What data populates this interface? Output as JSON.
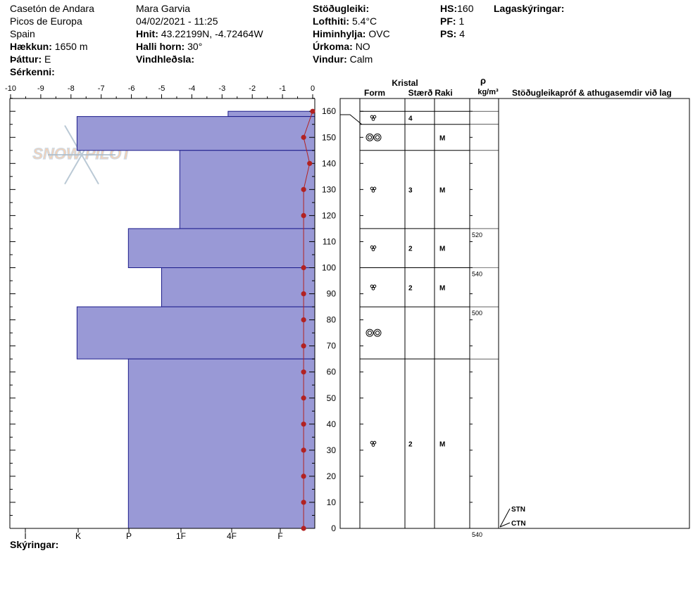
{
  "header": {
    "location": "Casetón de Andara",
    "region": "Picos de Europa",
    "country": "Spain",
    "elevation_label": "Hækkun:",
    "elevation": "1650 m",
    "aspect_label": "Þáttur:",
    "aspect": "E",
    "features_label": "Sérkenni:",
    "observer": "Mara Garvia",
    "datetime": "04/02/2021 - 11:25",
    "coords_label": "Hnit:",
    "coords": "43.22199N, -4.72464W",
    "slope_label": "Halli horn:",
    "slope": "30°",
    "wind_loading_label": "Vindhleðsla:",
    "stability_label": "Stöðugleiki:",
    "air_temp_label": "Lofthiti:",
    "air_temp": "5.4°C",
    "sky_label": "Himinhylja:",
    "sky": "OVC",
    "precip_label": "Úrkoma:",
    "precip": "NO",
    "wind_label": "Vindur:",
    "wind": "Calm",
    "hs_label": "HS:",
    "hs": "160",
    "pf_label": "PF:",
    "pf": "1",
    "ps_label": "PS:",
    "ps": "4",
    "layer_notes_label": "Lagaskýringar:"
  },
  "footer": {
    "legend_label": "Skýringar:"
  },
  "watermark": "SNOW PILOT",
  "columns": {
    "crystal": "Kristal",
    "form": "Form",
    "size": "Stærð",
    "moisture": "Raki",
    "density_symbol": "ρ",
    "density_unit": "kg/m³",
    "tests": "Stöðugleikapróf & athugasemdir við lag"
  },
  "chart_data": {
    "type": "snow_profile",
    "height_axis": {
      "min": 0,
      "max": 165,
      "ticks": [
        0,
        10,
        20,
        30,
        40,
        50,
        60,
        70,
        80,
        90,
        100,
        110,
        120,
        130,
        140,
        150,
        160
      ]
    },
    "temp_axis": {
      "min": -10,
      "max": 0,
      "ticks": [
        "-10",
        "-9",
        "-8",
        "-7",
        "-6",
        "-5",
        "-4",
        "-3",
        "-2",
        "-1",
        "0"
      ]
    },
    "hardness_labels": [
      "I",
      "K",
      "P",
      "1F",
      "4F",
      "F"
    ],
    "hardness_profile": [
      {
        "bottom": 158,
        "top": 160,
        "value": -2.8
      },
      {
        "bottom": 145,
        "top": 158,
        "value": -7.8
      },
      {
        "bottom": 115,
        "top": 145,
        "value": -4.4
      },
      {
        "bottom": 100,
        "top": 115,
        "value": -6.1
      },
      {
        "bottom": 85,
        "top": 100,
        "value": -5.0
      },
      {
        "bottom": 65,
        "top": 85,
        "value": -7.8
      },
      {
        "bottom": 0,
        "top": 65,
        "value": -6.1
      }
    ],
    "temperature_profile": [
      {
        "h": 160,
        "t": 0.0
      },
      {
        "h": 150,
        "t": -0.3
      },
      {
        "h": 140,
        "t": -0.1
      },
      {
        "h": 130,
        "t": -0.3
      },
      {
        "h": 120,
        "t": -0.3
      },
      {
        "h": 100,
        "t": -0.3
      },
      {
        "h": 90,
        "t": -0.3
      },
      {
        "h": 80,
        "t": -0.3
      },
      {
        "h": 70,
        "t": -0.3
      },
      {
        "h": 60,
        "t": -0.3
      },
      {
        "h": 50,
        "t": -0.3
      },
      {
        "h": 40,
        "t": -0.3
      },
      {
        "h": 30,
        "t": -0.3
      },
      {
        "h": 20,
        "t": -0.3
      },
      {
        "h": 10,
        "t": -0.3
      },
      {
        "h": 0,
        "t": -0.3
      }
    ],
    "layers": [
      {
        "bottom": 155,
        "top": 160,
        "mid": 157.5,
        "form": "rounded",
        "size": "4",
        "moisture": ""
      },
      {
        "bottom": 145,
        "top": 155,
        "mid": 150,
        "form": "melt",
        "size": "",
        "moisture": "M"
      },
      {
        "bottom": 115,
        "top": 145,
        "mid": 130,
        "form": "rounded",
        "size": "3",
        "moisture": "M"
      },
      {
        "bottom": 100,
        "top": 115,
        "mid": 107.5,
        "form": "rounded",
        "size": "2",
        "moisture": "M"
      },
      {
        "bottom": 85,
        "top": 100,
        "mid": 92.5,
        "form": "rounded",
        "size": "2",
        "moisture": "M"
      },
      {
        "bottom": 65,
        "top": 85,
        "mid": 75,
        "form": "melt",
        "size": "",
        "moisture": ""
      },
      {
        "bottom": 0,
        "top": 65,
        "mid": 32.5,
        "form": "rounded",
        "size": "2",
        "moisture": "M"
      }
    ],
    "densities": [
      {
        "h": 115,
        "value": "520"
      },
      {
        "h": 100,
        "value": "540"
      },
      {
        "h": 85,
        "value": "500"
      },
      {
        "h": 0,
        "value": "540"
      }
    ],
    "tests": [
      {
        "h": 5,
        "label": "STN"
      },
      {
        "h": 0,
        "label": "CTN"
      }
    ]
  }
}
